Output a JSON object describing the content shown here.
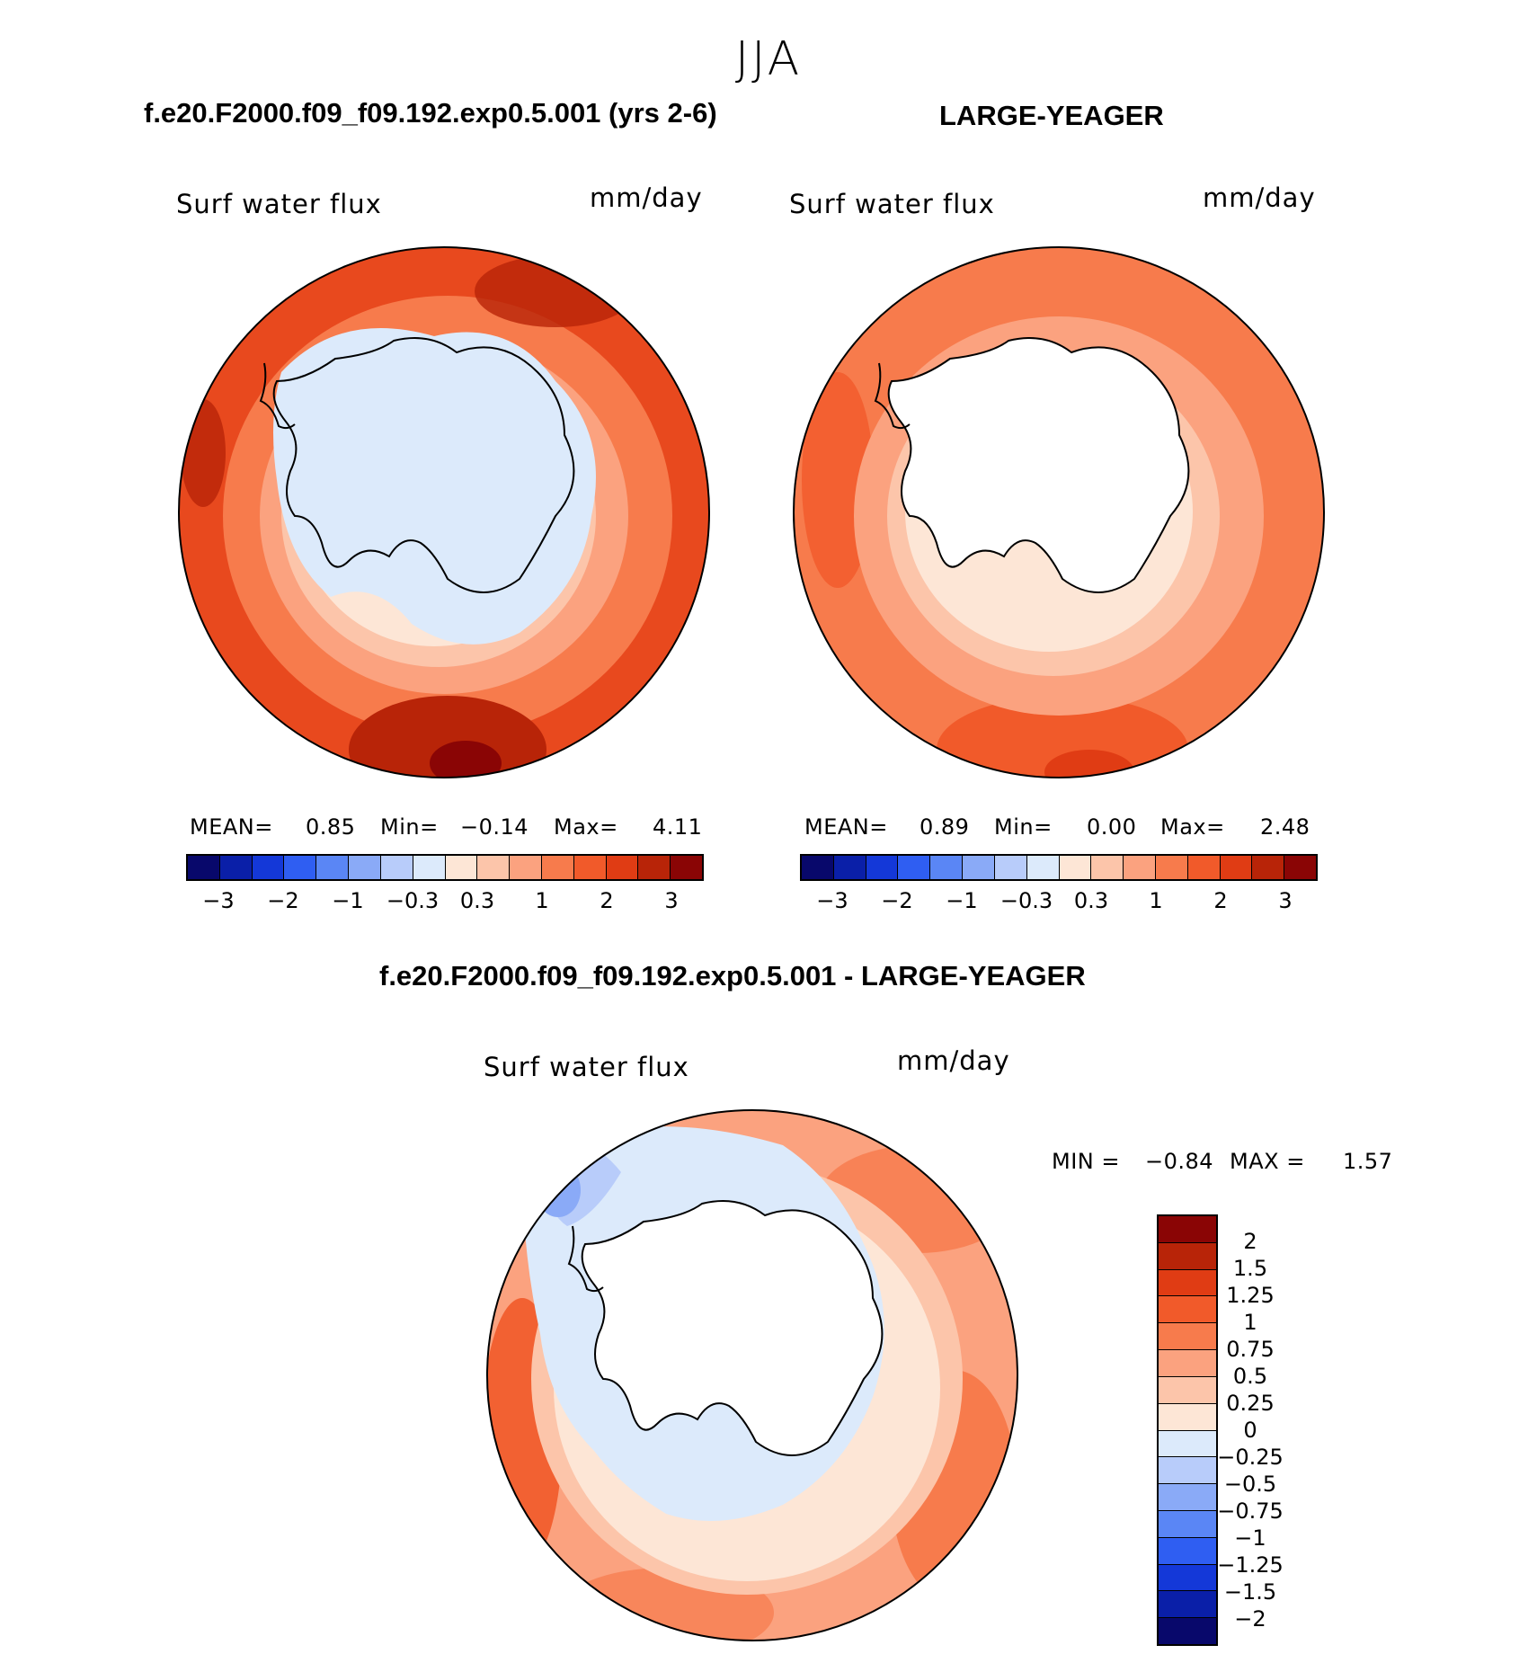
{
  "season": "JJA",
  "panels": [
    {
      "title": "f.e20.F2000.f09_f09.192.exp0.5.001 (yrs 2-6)",
      "variable": "Surf water flux",
      "units": "mm/day",
      "stats": {
        "mean_label": "MEAN=",
        "mean": "0.85",
        "min_label": "Min=",
        "min": "−0.14",
        "max_label": "Max=",
        "max": "4.11"
      }
    },
    {
      "title": "LARGE-YEAGER",
      "variable": "Surf water flux",
      "units": "mm/day",
      "stats": {
        "mean_label": "MEAN=",
        "mean": "0.89",
        "min_label": "Min=",
        "min": "0.00",
        "max_label": "Max=",
        "max": "2.48"
      }
    }
  ],
  "colorbar_top": {
    "colors": [
      "#08086b",
      "#0a1fa8",
      "#1438d8",
      "#2f5ef2",
      "#5a86f5",
      "#8aaaf7",
      "#b8ccfa",
      "#dceafb",
      "#fde6d6",
      "#fcc5aa",
      "#fba27f",
      "#f77b4c",
      "#f15a2a",
      "#e03c14",
      "#b82408",
      "#8a0505"
    ],
    "ticks": [
      "−3",
      "−2",
      "−1",
      "−0.3",
      "0.3",
      "1",
      "2",
      "3"
    ]
  },
  "diff_panel": {
    "title": "f.e20.F2000.f09_f09.192.exp0.5.001 - LARGE-YEAGER",
    "variable": "Surf water flux",
    "units": "mm/day",
    "stats": {
      "min_label": "MIN =",
      "min": "−0.84",
      "max_label": "MAX =",
      "max": "1.57"
    }
  },
  "colorbar_diff": {
    "colors": [
      "#8a0505",
      "#b82408",
      "#e03c14",
      "#f15a2a",
      "#f77b4c",
      "#fba27f",
      "#fcc5aa",
      "#fde6d6",
      "#dceafb",
      "#b8ccfa",
      "#8aaaf7",
      "#5a86f5",
      "#2f5ef2",
      "#1438d8",
      "#0a1fa8",
      "#08086b"
    ],
    "ticks": [
      "2",
      "1.5",
      "1.25",
      "1",
      "0.75",
      "0.5",
      "0.25",
      "0",
      "−0.25",
      "−0.5",
      "−0.75",
      "−1",
      "−1.25",
      "−1.5",
      "−2"
    ]
  }
}
